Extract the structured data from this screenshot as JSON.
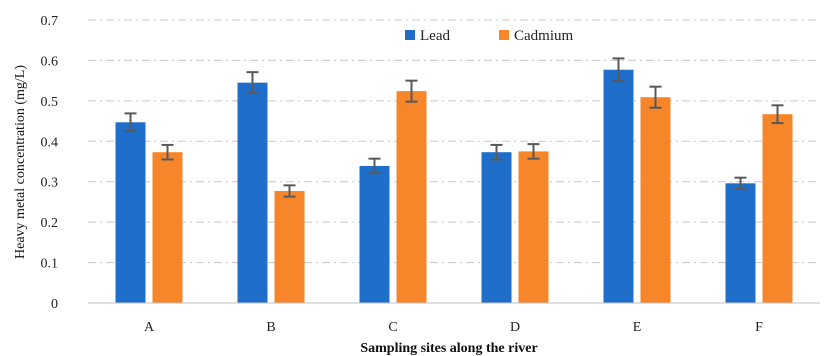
{
  "chart_data": {
    "type": "bar",
    "xlabel": "Sampling sites along the river",
    "ylabel": "Heavy metal concentration (mg/L)",
    "categories": [
      "A",
      "B",
      "C",
      "D",
      "E",
      "F"
    ],
    "ylim": [
      0,
      0.7
    ],
    "yticks": [
      0,
      0.1,
      0.2,
      0.3,
      0.4,
      0.5,
      0.6,
      0.7
    ],
    "ytick_labels": [
      "0",
      "0.1",
      "0.2",
      "0.3",
      "0.4",
      "0.5",
      "0.6",
      "0.7"
    ],
    "grid": true,
    "legend_position": "top-center",
    "series": [
      {
        "name": "Lead",
        "color": "#1f6ec9",
        "values": [
          0.447,
          0.545,
          0.339,
          0.373,
          0.577,
          0.296
        ],
        "errors": [
          0.022,
          0.026,
          0.018,
          0.018,
          0.028,
          0.014
        ]
      },
      {
        "name": "Cadmium",
        "color": "#f7852a",
        "values": [
          0.373,
          0.277,
          0.524,
          0.375,
          0.509,
          0.467
        ],
        "errors": [
          0.018,
          0.014,
          0.026,
          0.018,
          0.026,
          0.022
        ]
      }
    ]
  }
}
